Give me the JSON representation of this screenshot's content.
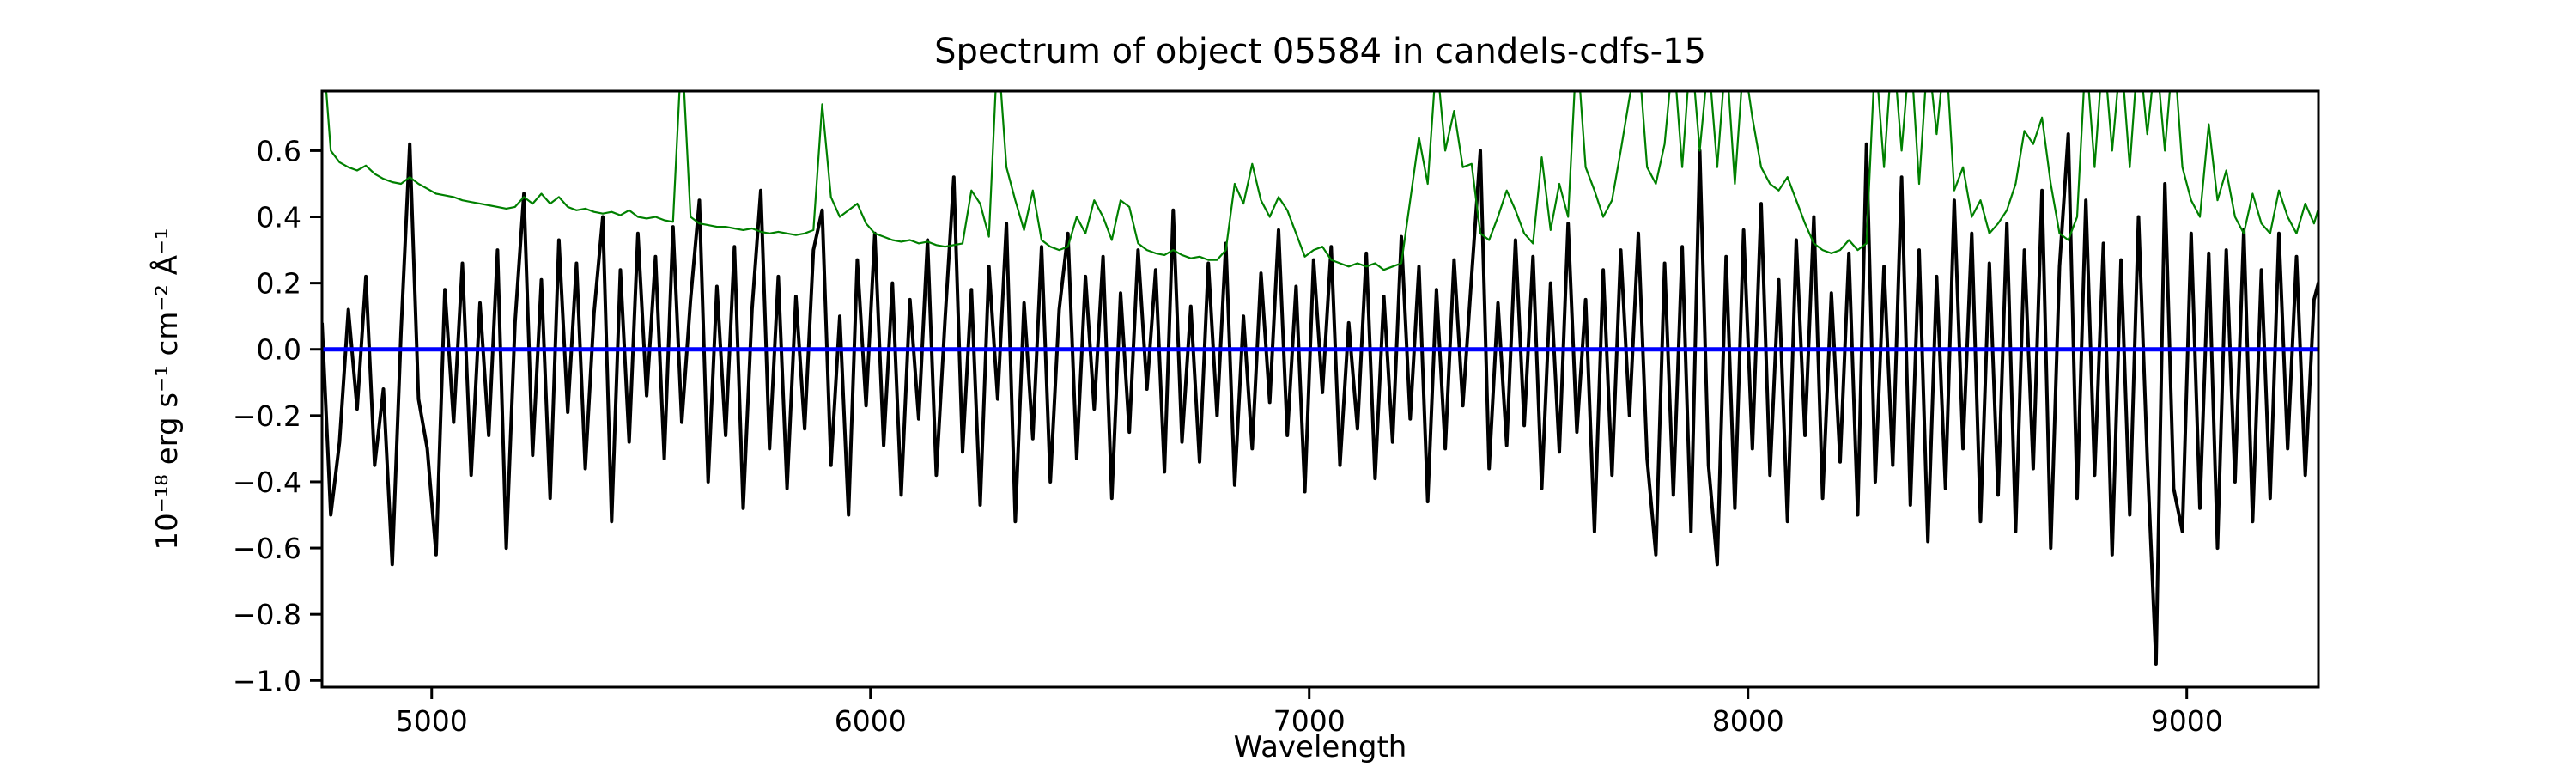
{
  "chart_data": {
    "type": "line",
    "title": "Spectrum of object 05584 in candels-cdfs-15",
    "xlabel": "Wavelength",
    "ylabel": "10⁻¹⁸ erg s⁻¹ cm⁻² Å⁻¹",
    "xlim": [
      4750,
      9300
    ],
    "ylim": [
      -1.02,
      0.78
    ],
    "grid": false,
    "legend": "none",
    "background": "#ffffff",
    "axes_color": "#000000",
    "xticks": [
      {
        "value": 5000,
        "label": "5000"
      },
      {
        "value": 6000,
        "label": "6000"
      },
      {
        "value": 7000,
        "label": "7000"
      },
      {
        "value": 8000,
        "label": "8000"
      },
      {
        "value": 9000,
        "label": "9000"
      }
    ],
    "yticks": [
      {
        "value": 0.6,
        "label": "0.6"
      },
      {
        "value": 0.4,
        "label": "0.4"
      },
      {
        "value": 0.2,
        "label": "0.2"
      },
      {
        "value": 0.0,
        "label": "0.0"
      },
      {
        "value": -0.2,
        "label": "−0.2"
      },
      {
        "value": -0.4,
        "label": "−0.4"
      },
      {
        "value": -0.6,
        "label": "−0.6"
      },
      {
        "value": -0.8,
        "label": "−0.8"
      },
      {
        "value": -1.0,
        "label": "−1.0"
      }
    ],
    "x_start": 4750,
    "x_step": 20,
    "series": [
      {
        "name": "flux-spectrum",
        "description": "observed flux, noisy around zero",
        "color": "#000000",
        "linewidth": 4,
        "values": [
          0.08,
          -0.5,
          -0.28,
          0.12,
          -0.18,
          0.22,
          -0.35,
          -0.12,
          -0.65,
          0.05,
          0.62,
          -0.15,
          -0.3,
          -0.62,
          0.18,
          -0.22,
          0.26,
          -0.38,
          0.14,
          -0.26,
          0.3,
          -0.6,
          0.08,
          0.47,
          -0.32,
          0.21,
          -0.45,
          0.33,
          -0.19,
          0.26,
          -0.36,
          0.11,
          0.4,
          -0.52,
          0.24,
          -0.28,
          0.35,
          -0.14,
          0.28,
          -0.33,
          0.37,
          -0.22,
          0.15,
          0.45,
          -0.4,
          0.19,
          -0.26,
          0.31,
          -0.48,
          0.12,
          0.48,
          -0.3,
          0.22,
          -0.42,
          0.16,
          -0.24,
          0.3,
          0.42,
          -0.35,
          0.1,
          -0.5,
          0.27,
          -0.17,
          0.35,
          -0.29,
          0.2,
          -0.44,
          0.15,
          -0.21,
          0.33,
          -0.38,
          0.09,
          0.52,
          -0.31,
          0.18,
          -0.47,
          0.25,
          -0.15,
          0.38,
          -0.52,
          0.14,
          -0.27,
          0.31,
          -0.4,
          0.12,
          0.35,
          -0.33,
          0.22,
          -0.18,
          0.28,
          -0.45,
          0.17,
          -0.25,
          0.3,
          -0.12,
          0.24,
          -0.37,
          0.42,
          -0.28,
          0.13,
          -0.34,
          0.26,
          -0.2,
          0.32,
          -0.41,
          0.1,
          -0.3,
          0.23,
          -0.16,
          0.36,
          -0.26,
          0.19,
          -0.43,
          0.27,
          -0.13,
          0.31,
          -0.35,
          0.08,
          -0.24,
          0.29,
          -0.39,
          0.16,
          -0.28,
          0.34,
          -0.21,
          0.25,
          -0.46,
          0.18,
          -0.3,
          0.27,
          -0.17,
          0.22,
          0.6,
          -0.36,
          0.14,
          -0.29,
          0.33,
          -0.23,
          0.28,
          -0.42,
          0.2,
          -0.31,
          0.38,
          -0.25,
          0.15,
          -0.55,
          0.24,
          -0.38,
          0.3,
          -0.2,
          0.35,
          -0.33,
          -0.62,
          0.26,
          -0.44,
          0.31,
          -0.55,
          0.6,
          -0.35,
          -0.65,
          0.28,
          -0.48,
          0.36,
          -0.3,
          0.44,
          -0.38,
          0.21,
          -0.52,
          0.33,
          -0.26,
          0.4,
          -0.45,
          0.17,
          -0.34,
          0.29,
          -0.5,
          0.62,
          -0.4,
          0.25,
          -0.35,
          0.52,
          -0.47,
          0.3,
          -0.58,
          0.22,
          -0.42,
          0.45,
          -0.3,
          0.35,
          -0.52,
          0.26,
          -0.44,
          0.38,
          -0.55,
          0.3,
          -0.36,
          0.48,
          -0.6,
          0.25,
          0.65,
          -0.45,
          0.45,
          -0.38,
          0.32,
          -0.62,
          0.27,
          -0.5,
          0.4,
          -0.33,
          -0.95,
          0.5,
          -0.42,
          -0.55,
          0.35,
          -0.48,
          0.29,
          -0.6,
          0.3,
          -0.4,
          0.36,
          -0.52,
          0.24,
          -0.45,
          0.35,
          -0.3,
          0.28,
          -0.38,
          0.15,
          0.25
        ]
      },
      {
        "name": "sky-noise-spectrum",
        "description": "noise / sky spectrum with OH emission spikes, declining continuum",
        "color": "#008000",
        "linewidth": 2.2,
        "values": [
          0.95,
          0.6,
          0.565,
          0.55,
          0.54,
          0.555,
          0.53,
          0.515,
          0.505,
          0.5,
          0.52,
          0.5,
          0.485,
          0.47,
          0.465,
          0.46,
          0.45,
          0.445,
          0.44,
          0.435,
          0.43,
          0.425,
          0.43,
          0.46,
          0.44,
          0.47,
          0.44,
          0.46,
          0.43,
          0.42,
          0.425,
          0.415,
          0.41,
          0.415,
          0.405,
          0.42,
          0.4,
          0.395,
          0.4,
          0.39,
          0.385,
          0.92,
          0.4,
          0.38,
          0.375,
          0.37,
          0.37,
          0.365,
          0.36,
          0.365,
          0.355,
          0.35,
          0.355,
          0.35,
          0.345,
          0.35,
          0.36,
          0.74,
          0.46,
          0.4,
          0.42,
          0.44,
          0.38,
          0.35,
          0.34,
          0.33,
          0.325,
          0.33,
          0.32,
          0.325,
          0.315,
          0.31,
          0.315,
          0.32,
          0.48,
          0.44,
          0.34,
          0.92,
          0.55,
          0.45,
          0.36,
          0.48,
          0.33,
          0.31,
          0.3,
          0.31,
          0.4,
          0.35,
          0.45,
          0.4,
          0.33,
          0.45,
          0.43,
          0.32,
          0.3,
          0.29,
          0.285,
          0.3,
          0.285,
          0.275,
          0.28,
          0.27,
          0.27,
          0.3,
          0.5,
          0.44,
          0.56,
          0.45,
          0.4,
          0.46,
          0.42,
          0.35,
          0.28,
          0.3,
          0.31,
          0.27,
          0.26,
          0.25,
          0.26,
          0.25,
          0.26,
          0.24,
          0.25,
          0.26,
          0.45,
          0.64,
          0.5,
          0.88,
          0.6,
          0.72,
          0.55,
          0.56,
          0.35,
          0.33,
          0.4,
          0.48,
          0.42,
          0.35,
          0.32,
          0.58,
          0.36,
          0.5,
          0.4,
          0.92,
          0.55,
          0.48,
          0.4,
          0.45,
          0.6,
          0.76,
          0.9,
          0.55,
          0.5,
          0.62,
          0.9,
          0.55,
          0.92,
          0.6,
          0.88,
          0.55,
          0.9,
          0.5,
          0.88,
          0.7,
          0.55,
          0.5,
          0.48,
          0.52,
          0.45,
          0.38,
          0.32,
          0.3,
          0.29,
          0.3,
          0.33,
          0.3,
          0.32,
          0.9,
          0.55,
          0.93,
          0.6,
          0.92,
          0.5,
          0.9,
          0.65,
          0.92,
          0.48,
          0.55,
          0.4,
          0.45,
          0.35,
          0.38,
          0.42,
          0.5,
          0.66,
          0.62,
          0.7,
          0.5,
          0.35,
          0.33,
          0.4,
          0.9,
          0.55,
          0.92,
          0.6,
          0.9,
          0.55,
          0.92,
          0.65,
          0.9,
          0.6,
          0.92,
          0.55,
          0.45,
          0.4,
          0.68,
          0.45,
          0.54,
          0.4,
          0.35,
          0.47,
          0.38,
          0.35,
          0.48,
          0.4,
          0.35,
          0.44,
          0.38,
          0.47
        ]
      },
      {
        "name": "zero-flux-reference",
        "description": "horizontal reference line at zero flux",
        "color": "#0000ff",
        "linewidth": 5,
        "y": 0.0
      }
    ]
  }
}
